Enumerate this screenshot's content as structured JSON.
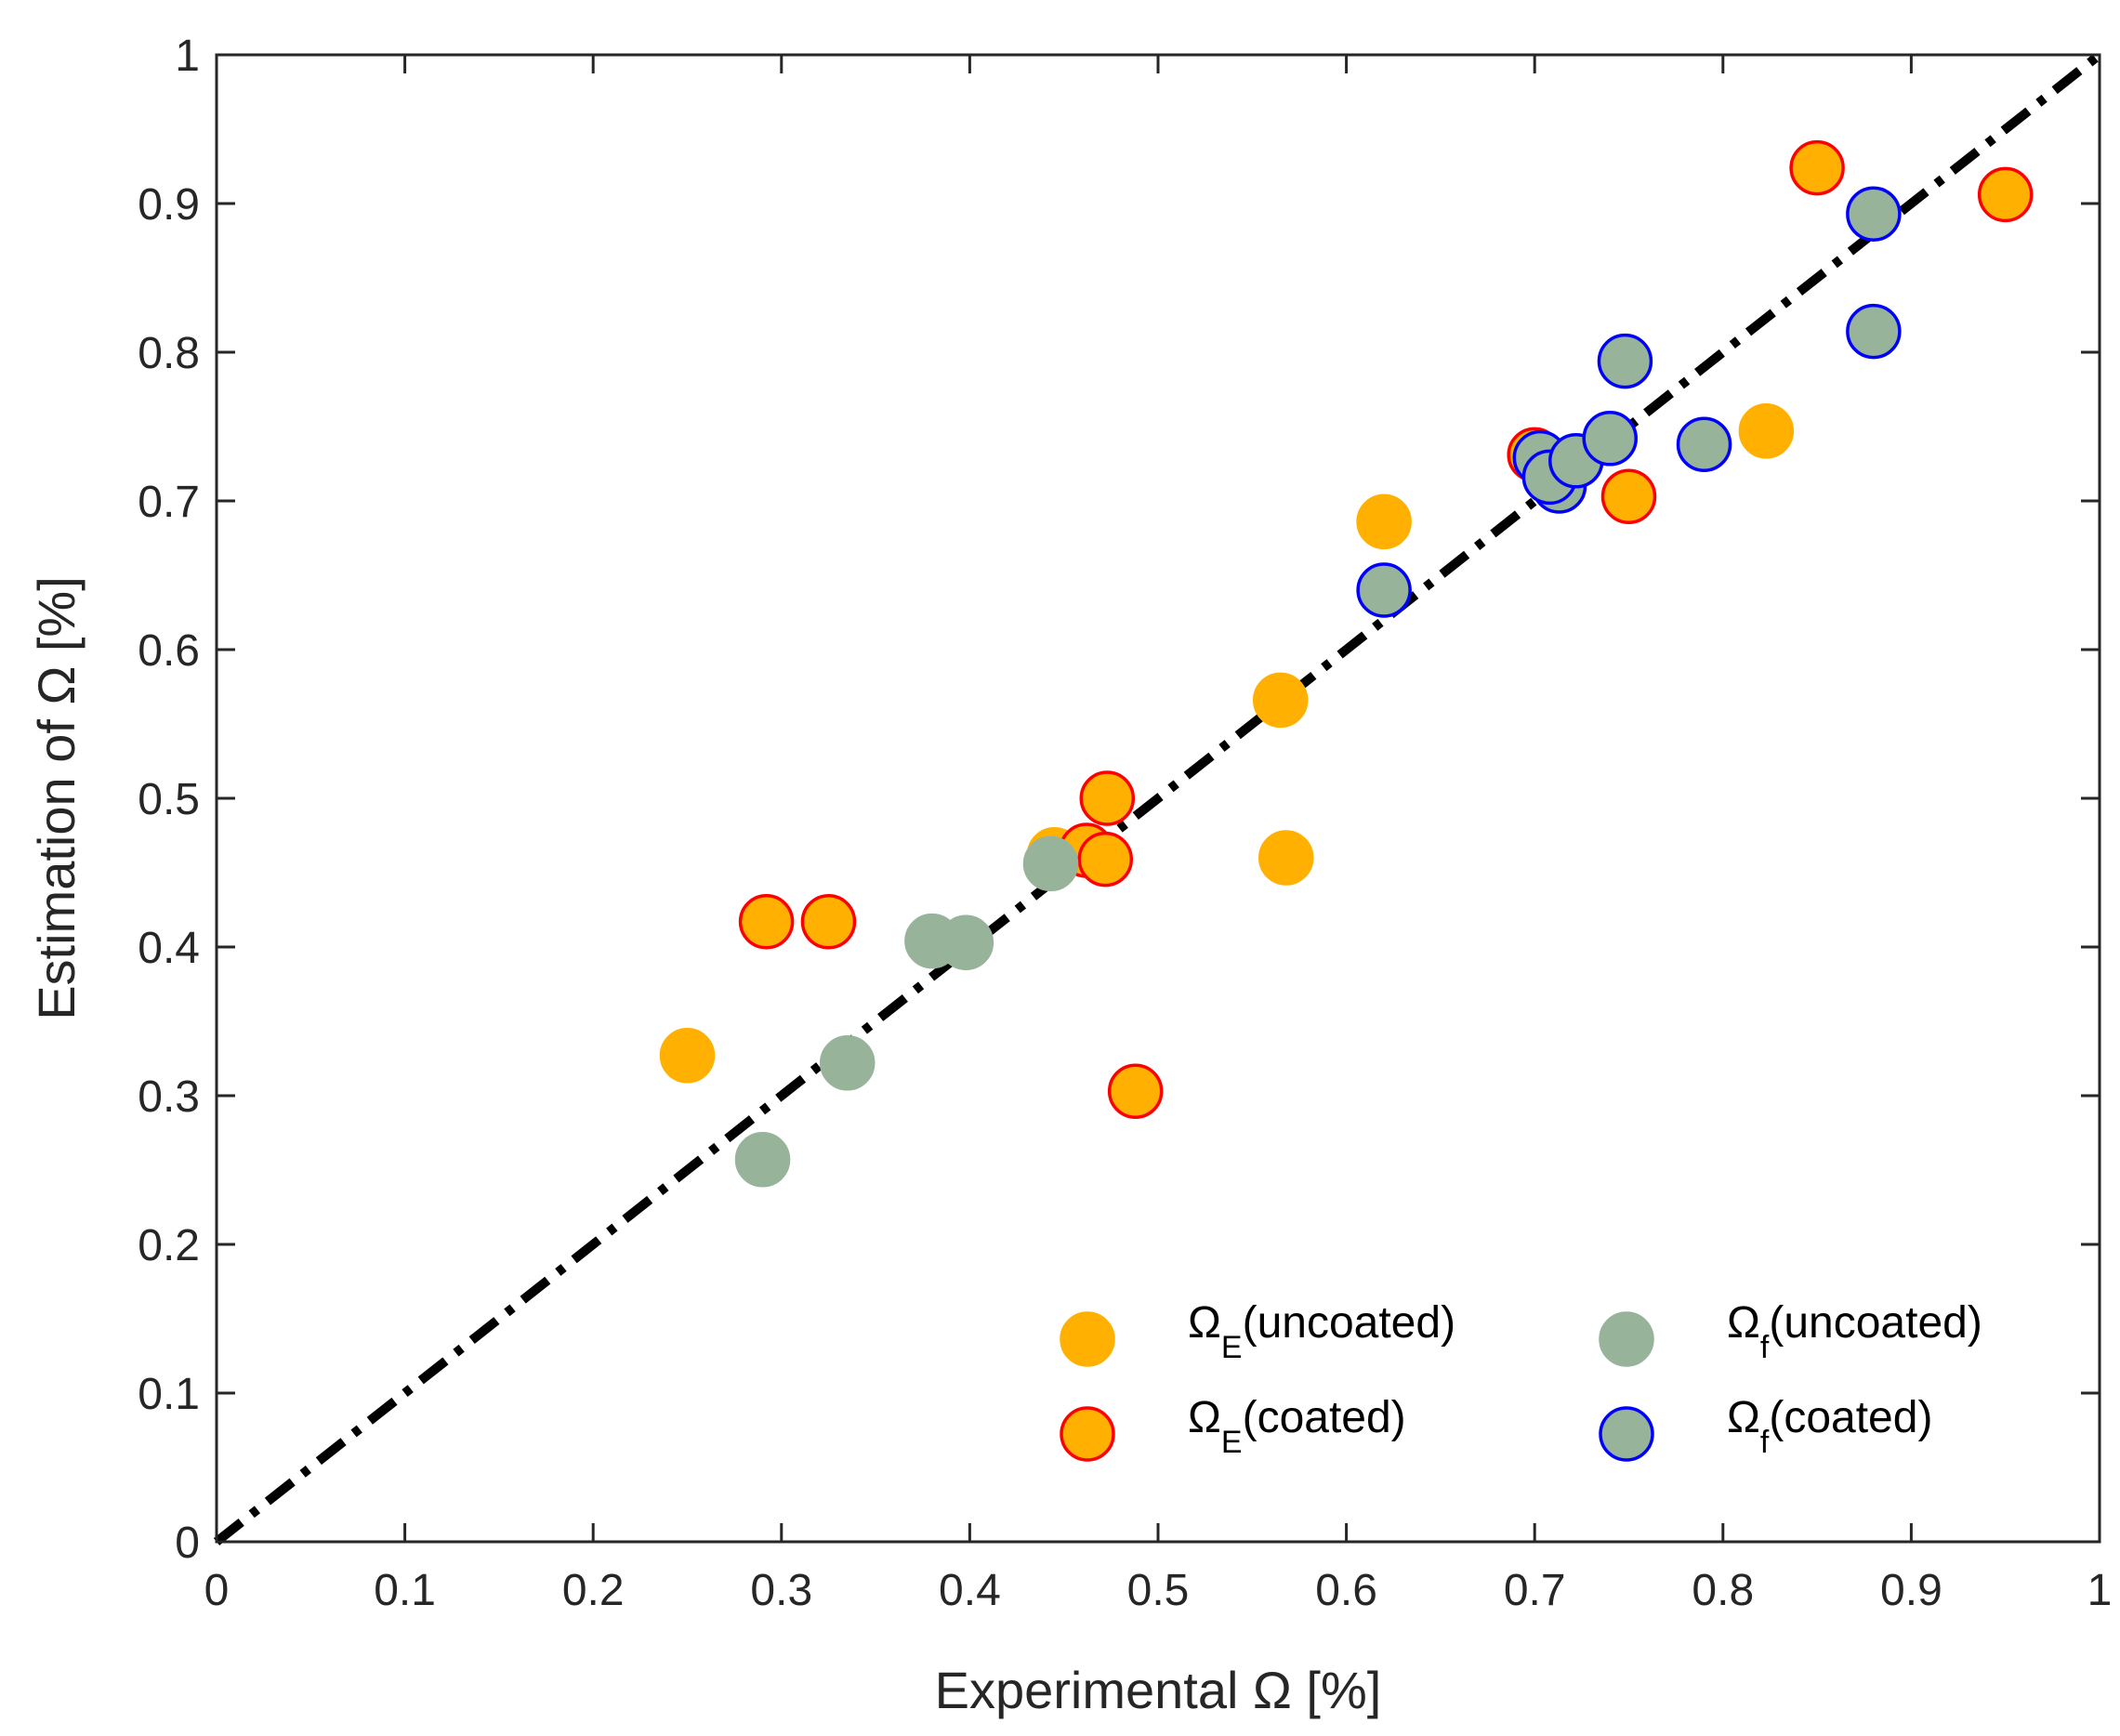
{
  "chart_data": {
    "type": "scatter",
    "title": "",
    "xlabel": "Experimental Ω [%]",
    "ylabel": "Estimation of Ω [%]",
    "xlim": [
      0,
      1
    ],
    "ylim": [
      0,
      1
    ],
    "xticks": [
      0,
      0.1,
      0.2,
      0.3,
      0.4,
      0.5,
      0.6,
      0.7,
      0.8,
      0.9,
      1
    ],
    "yticks": [
      0,
      0.1,
      0.2,
      0.3,
      0.4,
      0.5,
      0.6,
      0.7,
      0.8,
      0.9,
      1
    ],
    "xtick_labels": [
      "0",
      "0.1",
      "0.2",
      "0.3",
      "0.4",
      "0.5",
      "0.6",
      "0.7",
      "0.8",
      "0.9",
      "1"
    ],
    "ytick_labels": [
      "0",
      "0.1",
      "0.2",
      "0.3",
      "0.4",
      "0.5",
      "0.6",
      "0.7",
      "0.8",
      "0.9",
      "1"
    ],
    "grid": false,
    "legend_position": "bottom-right",
    "reference_line": {
      "name": "y = x",
      "from": [
        0,
        0
      ],
      "to": [
        1,
        1
      ],
      "style": "dash-dot",
      "color": "#000000"
    },
    "series": [
      {
        "name": "ΩE(uncoated)",
        "symbol": "Ω",
        "subscript": "E",
        "suffix": "(uncoated)",
        "fill": "#FFB000",
        "edge": "#FFB000",
        "points": [
          [
            0.25,
            0.327
          ],
          [
            0.445,
            0.462
          ],
          [
            0.565,
            0.566
          ],
          [
            0.568,
            0.46
          ],
          [
            0.62,
            0.686
          ],
          [
            0.823,
            0.747
          ]
        ]
      },
      {
        "name": "ΩE(coated)",
        "symbol": "Ω",
        "subscript": "E",
        "suffix": "(coated)",
        "fill": "#FFB000",
        "edge": "#FF0000",
        "points": [
          [
            0.292,
            0.417
          ],
          [
            0.325,
            0.417
          ],
          [
            0.462,
            0.465
          ],
          [
            0.472,
            0.459
          ],
          [
            0.473,
            0.5
          ],
          [
            0.488,
            0.303
          ],
          [
            0.7,
            0.731
          ],
          [
            0.75,
            0.703
          ],
          [
            0.85,
            0.924
          ],
          [
            0.95,
            0.906
          ]
        ]
      },
      {
        "name": "Ωf(uncoated)",
        "symbol": "Ω",
        "subscript": "f",
        "suffix": "(uncoated)",
        "fill": "#97B39A",
        "edge": "#97B39A",
        "points": [
          [
            0.29,
            0.257
          ],
          [
            0.335,
            0.322
          ],
          [
            0.38,
            0.404
          ],
          [
            0.398,
            0.403
          ],
          [
            0.443,
            0.456
          ]
        ]
      },
      {
        "name": "Ωf(coated)",
        "symbol": "Ω",
        "subscript": "f",
        "suffix": "(coated)",
        "fill": "#97B39A",
        "edge": "#0000FF",
        "points": [
          [
            0.62,
            0.64
          ],
          [
            0.703,
            0.729
          ],
          [
            0.713,
            0.71
          ],
          [
            0.708,
            0.716
          ],
          [
            0.722,
            0.727
          ],
          [
            0.74,
            0.742
          ],
          [
            0.748,
            0.794
          ],
          [
            0.79,
            0.738
          ],
          [
            0.88,
            0.814
          ],
          [
            0.88,
            0.893
          ]
        ]
      }
    ]
  }
}
